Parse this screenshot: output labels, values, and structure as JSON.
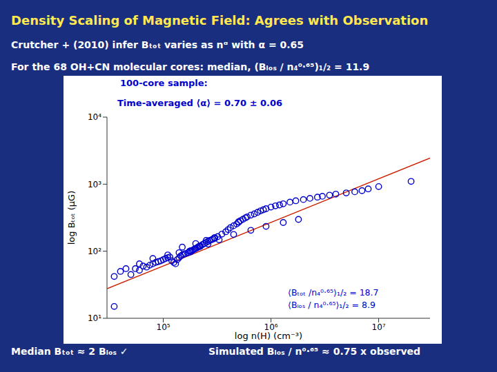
{
  "chart_data": {
    "type": "scatter",
    "title": "Density Scaling of Magnetic Field: Agrees with Observation",
    "subtitle": [
      "Crutcher + (2010) infer Bₜₒₜ varies as nᵅ with α = 0.65",
      "For the 68 OH+CN molecular cores:  median, (Bₗₒₛ / n₄⁰·⁶⁵)₁/₂ = 11.9"
    ],
    "x_label": "log n(H) (cm⁻³)",
    "y_label": "log Bₜₒₜ (μG)",
    "annotations": [
      "100-core sample:",
      "Time-averaged ⟨α⟩ = 0.70 ± 0.06",
      "⟨Bₜₒₜ /n₄⁰·⁶⁵⟩₁/₂ = 18.7",
      "⟨Bₗₒₛ / n₄⁰·⁶⁵⟩₁/₂ = 8.9",
      "Median Bₜₒₜ ≈ 2 Bₗₒₛ ✓",
      "Simulated Bₗₒₛ / n⁰·⁶⁵  ≈ 0.75 x observed"
    ],
    "log": true,
    "grid": false,
    "xlim": [
      30000.0,
      30000000.0
    ],
    "ylim": [
      10,
      10000
    ],
    "xticks": [
      {
        "value": 100000.0,
        "label": "10⁵"
      },
      {
        "value": 1000000.0,
        "label": "10⁶"
      },
      {
        "value": 10000000.0,
        "label": "10⁷"
      }
    ],
    "yticks": [
      {
        "value": 10,
        "label": "10¹"
      },
      {
        "value": 100,
        "label": "10²"
      },
      {
        "value": 1000,
        "label": "10³"
      },
      {
        "value": 10000,
        "label": "10⁴"
      }
    ],
    "series": [
      {
        "type": "line",
        "color": "#cc2200",
        "x": [
          30000.0,
          30000000.0
        ],
        "values": [
          27.5505,
          2455.44
        ]
      },
      {
        "type": "scatter",
        "color": "#0000cc",
        "marker": "circle",
        "x": [
          35000.0,
          40000.0,
          50000.0,
          55000.0,
          60000.0,
          65000.0,
          70000.0,
          75000.0,
          80000.0,
          85000.0,
          90000.0,
          95000.0,
          100000.0,
          105000.0,
          110000.0,
          115000.0,
          120000.0,
          125000.0,
          130000.0,
          135000.0,
          140000.0,
          145000.0,
          150000.0,
          155000.0,
          160000.0,
          170000.0,
          175000.0,
          180000.0,
          185000.0,
          190000.0,
          195000.0,
          200000.0,
          205000.0,
          210000.0,
          215000.0,
          220000.0,
          230000.0,
          240000.0,
          250000.0,
          260000.0,
          270000.0,
          280000.0,
          290000.0,
          300000.0,
          320000.0,
          350000.0,
          380000.0,
          400000.0,
          420000.0,
          450000.0,
          480000.0,
          500000.0,
          520000.0,
          550000.0,
          580000.0,
          600000.0,
          650000.0,
          700000.0,
          750000.0,
          800000.0,
          850000.0,
          900000.0,
          1000000.0,
          1100000.0,
          1200000.0,
          1300000.0,
          1500000.0,
          1700000.0,
          2000000.0,
          2300000.0,
          2700000.0,
          3000000.0,
          3500000.0,
          4000000.0,
          5000000.0,
          6000000.0,
          7000000.0,
          8000000.0,
          10000000.0,
          20000000.0,
          45000.0,
          60000.0,
          80000.0,
          110000.0,
          140000.0,
          180000.0,
          220000.0,
          260000.0,
          330000.0,
          450000.0,
          650000.0,
          900000.0,
          1300000.0,
          1800000.0,
          300000.0,
          500000.0,
          150000.0,
          200000.0,
          250000.0,
          35000.0
        ],
        "values": [
          42,
          50,
          45,
          55,
          52,
          60,
          58,
          62,
          65,
          68,
          70,
          72,
          75,
          78,
          80,
          82,
          72,
          68,
          65,
          75,
          80,
          85,
          88,
          90,
          92,
          95,
          100,
          98,
          102,
          105,
          108,
          110,
          112,
          115,
          118,
          120,
          125,
          130,
          135,
          140,
          145,
          148,
          152,
          155,
          165,
          180,
          195,
          210,
          225,
          240,
          255,
          270,
          285,
          300,
          315,
          325,
          345,
          360,
          380,
          400,
          415,
          430,
          455,
          475,
          490,
          510,
          540,
          565,
          590,
          615,
          640,
          660,
          685,
          710,
          740,
          770,
          800,
          850,
          920,
          1100,
          55,
          65,
          78,
          88,
          95,
          102,
          118,
          128,
          148,
          178,
          205,
          235,
          268,
          298,
          160,
          275,
          115,
          130,
          145,
          15
        ]
      }
    ]
  }
}
